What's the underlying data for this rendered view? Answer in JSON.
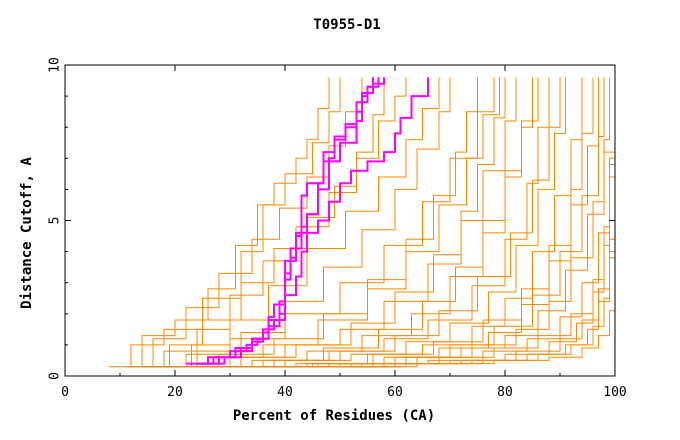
{
  "chart_data": {
    "type": "line",
    "title": "T0955-D1",
    "xlabel": "Percent of Residues (CA)",
    "ylabel": "Distance Cutoff, A",
    "xlim": [
      0,
      100
    ],
    "ylim": [
      0,
      10
    ],
    "x_ticks": [
      0,
      20,
      40,
      60,
      80,
      100
    ],
    "y_ticks": [
      0,
      5,
      10
    ],
    "grid": false,
    "colors": {
      "background_models": "#ff8800",
      "highlight_models": "#ff00ff"
    },
    "series": [
      {
        "name": "highlight-1",
        "group": "highlight",
        "x": [
          22,
          26,
          30,
          33,
          35,
          37,
          38,
          40,
          40,
          42,
          43,
          43,
          44,
          47,
          50,
          53,
          54,
          56,
          58
        ],
        "y": [
          0.4,
          0.6,
          0.8,
          1.0,
          1.2,
          1.5,
          1.8,
          2.6,
          3.7,
          4.5,
          5.1,
          5.8,
          6.2,
          6.9,
          7.5,
          8.2,
          9.1,
          9.4,
          9.6
        ]
      },
      {
        "name": "highlight-2",
        "group": "highlight",
        "x": [
          24,
          28,
          31,
          34,
          36,
          37,
          38,
          40,
          41,
          42,
          44,
          46,
          48,
          49,
          51,
          53,
          55,
          57
        ],
        "y": [
          0.4,
          0.6,
          0.9,
          1.2,
          1.5,
          1.9,
          2.3,
          3.1,
          3.8,
          4.6,
          5.2,
          6.0,
          7.0,
          7.6,
          8.1,
          8.8,
          9.3,
          9.6
        ]
      },
      {
        "name": "highlight-3",
        "group": "highlight",
        "x": [
          24,
          27,
          31,
          34,
          36,
          37,
          39,
          40,
          41,
          43,
          44,
          46,
          47,
          49,
          51,
          53,
          54,
          55,
          56
        ],
        "y": [
          0.4,
          0.6,
          0.8,
          1.1,
          1.4,
          1.8,
          2.4,
          3.3,
          4.1,
          4.8,
          5.2,
          6.2,
          7.2,
          7.7,
          8.0,
          8.5,
          9.0,
          9.3,
          9.6
        ]
      },
      {
        "name": "highlight-4",
        "group": "highlight",
        "x": [
          25,
          29,
          32,
          34,
          37,
          39,
          40,
          42,
          43,
          44,
          46,
          48,
          50,
          52,
          55,
          58,
          60,
          61,
          63,
          66
        ],
        "y": [
          0.4,
          0.6,
          0.9,
          1.2,
          1.6,
          2.0,
          2.6,
          3.2,
          4.0,
          4.6,
          5.0,
          5.6,
          6.2,
          6.6,
          6.9,
          7.2,
          7.8,
          8.3,
          9.0,
          9.6
        ]
      },
      {
        "name": "m01",
        "group": "model",
        "x": [
          8,
          12,
          18,
          25,
          32,
          36,
          40,
          45,
          48,
          50
        ],
        "y": [
          0.3,
          1.0,
          1.5,
          2.5,
          4.0,
          5.5,
          6.5,
          7.5,
          8.5,
          9.6
        ]
      },
      {
        "name": "m02",
        "group": "model",
        "x": [
          11,
          14,
          20,
          26,
          31,
          35,
          38,
          42,
          44,
          46,
          48
        ],
        "y": [
          0.3,
          1.3,
          1.8,
          2.8,
          4.2,
          5.5,
          6.2,
          7.0,
          7.6,
          8.6,
          9.6
        ]
      },
      {
        "name": "m03",
        "group": "model",
        "x": [
          13,
          18,
          24,
          30,
          36,
          42,
          48,
          53,
          57,
          60,
          62
        ],
        "y": [
          0.3,
          0.8,
          1.5,
          2.6,
          3.7,
          4.8,
          5.9,
          7.0,
          8.2,
          9.0,
          9.6
        ]
      },
      {
        "name": "m04",
        "group": "model",
        "x": [
          15,
          22,
          30,
          40,
          50,
          58,
          65,
          70,
          75,
          78
        ],
        "y": [
          0.3,
          0.7,
          1.2,
          2.0,
          3.0,
          4.2,
          5.6,
          7.0,
          8.5,
          9.6
        ]
      },
      {
        "name": "m05",
        "group": "model",
        "x": [
          18,
          26,
          36,
          46,
          55,
          62,
          68,
          73,
          76,
          79
        ],
        "y": [
          0.3,
          0.6,
          1.0,
          1.8,
          2.8,
          4.0,
          5.5,
          7.0,
          8.4,
          9.6
        ]
      },
      {
        "name": "m06",
        "group": "model",
        "x": [
          20,
          30,
          40,
          50,
          58,
          66,
          72,
          76,
          80,
          82
        ],
        "y": [
          0.3,
          0.6,
          1.0,
          1.5,
          2.4,
          3.6,
          5.0,
          6.6,
          8.2,
          9.6
        ]
      },
      {
        "name": "m07",
        "group": "model",
        "x": [
          22,
          34,
          44,
          54,
          63,
          70,
          76,
          80,
          83,
          85
        ],
        "y": [
          0.3,
          0.5,
          0.8,
          1.3,
          2.0,
          3.2,
          4.6,
          6.4,
          8.0,
          9.6
        ]
      },
      {
        "name": "m08",
        "group": "model",
        "x": [
          24,
          36,
          48,
          58,
          66,
          74,
          80,
          84,
          86,
          88
        ],
        "y": [
          0.3,
          0.5,
          0.8,
          1.2,
          1.8,
          2.9,
          4.4,
          6.2,
          8.0,
          9.6
        ]
      },
      {
        "name": "m09",
        "group": "model",
        "x": [
          26,
          40,
          52,
          62,
          70,
          77,
          82,
          86,
          89,
          91
        ],
        "y": [
          0.3,
          0.5,
          0.7,
          1.1,
          1.7,
          2.7,
          4.2,
          6.0,
          7.8,
          9.6
        ]
      },
      {
        "name": "m10",
        "group": "model",
        "x": [
          28,
          42,
          55,
          65,
          74,
          80,
          85,
          89,
          92,
          94
        ],
        "y": [
          0.3,
          0.4,
          0.7,
          1.0,
          1.6,
          2.5,
          4.0,
          5.8,
          7.6,
          9.6
        ]
      },
      {
        "name": "m11",
        "group": "model",
        "x": [
          30,
          45,
          58,
          68,
          77,
          83,
          88,
          92,
          95,
          97
        ],
        "y": [
          0.3,
          0.4,
          0.6,
          0.9,
          1.4,
          2.3,
          3.7,
          5.5,
          7.4,
          9.6
        ]
      },
      {
        "name": "m12",
        "group": "model",
        "x": [
          32,
          48,
          62,
          72,
          80,
          86,
          91,
          95,
          98,
          100
        ],
        "y": [
          0.3,
          0.4,
          0.6,
          0.9,
          1.3,
          2.1,
          3.4,
          5.2,
          7.2,
          9.6
        ]
      },
      {
        "name": "m13",
        "group": "model",
        "x": [
          35,
          52,
          66,
          76,
          84,
          90,
          94,
          97,
          99,
          100
        ],
        "y": [
          0.3,
          0.4,
          0.5,
          0.8,
          1.2,
          1.9,
          3.0,
          4.6,
          6.8,
          9.6
        ]
      },
      {
        "name": "m14",
        "group": "model",
        "x": [
          38,
          56,
          70,
          80,
          88,
          93,
          96,
          98,
          99,
          100
        ],
        "y": [
          0.3,
          0.4,
          0.5,
          0.7,
          1.1,
          1.7,
          2.7,
          4.2,
          6.4,
          9.6
        ]
      },
      {
        "name": "m15",
        "group": "model",
        "x": [
          42,
          60,
          74,
          84,
          91,
          95,
          97,
          99,
          100,
          100
        ],
        "y": [
          0.3,
          0.4,
          0.5,
          0.7,
          1.0,
          1.5,
          2.4,
          3.8,
          6.0,
          9.6
        ]
      },
      {
        "name": "m16",
        "group": "model",
        "x": [
          46,
          64,
          78,
          88,
          94,
          97,
          99,
          100,
          100,
          100
        ],
        "y": [
          0.3,
          0.4,
          0.5,
          0.6,
          0.9,
          1.3,
          2.1,
          3.4,
          5.6,
          9.6
        ]
      },
      {
        "name": "m17",
        "group": "model",
        "x": [
          14,
          19,
          25,
          32,
          38,
          44,
          49,
          53,
          56,
          58
        ],
        "y": [
          0.3,
          1.0,
          1.8,
          3.0,
          4.1,
          5.1,
          6.1,
          7.2,
          8.4,
          9.6
        ]
      },
      {
        "name": "m18",
        "group": "model",
        "x": [
          16,
          24,
          32,
          40,
          47,
          54,
          60,
          64,
          68,
          70
        ],
        "y": [
          0.3,
          0.8,
          1.4,
          2.4,
          3.5,
          4.7,
          6.0,
          7.3,
          8.5,
          9.6
        ]
      },
      {
        "name": "m19",
        "group": "model",
        "x": [
          19,
          28,
          38,
          47,
          55,
          62,
          67,
          71,
          73,
          75
        ],
        "y": [
          0.3,
          0.7,
          1.2,
          2.0,
          3.1,
          4.4,
          5.8,
          7.2,
          8.5,
          9.6
        ]
      },
      {
        "name": "m20",
        "group": "model",
        "x": [
          21,
          32,
          42,
          52,
          60,
          67,
          72,
          75,
          78,
          80
        ],
        "y": [
          0.3,
          0.6,
          1.0,
          1.7,
          2.7,
          3.9,
          5.3,
          6.8,
          8.3,
          9.6
        ]
      },
      {
        "name": "m21",
        "group": "model",
        "x": [
          23,
          36,
          47,
          57,
          65,
          71,
          76,
          80,
          83,
          86
        ],
        "y": [
          0.3,
          0.5,
          0.9,
          1.5,
          2.4,
          3.5,
          5.0,
          6.6,
          8.2,
          9.6
        ]
      },
      {
        "name": "m22",
        "group": "model",
        "x": [
          27,
          38,
          50,
          60,
          68,
          75,
          81,
          85,
          88,
          90
        ],
        "y": [
          0.3,
          0.5,
          0.8,
          1.3,
          2.1,
          3.2,
          4.6,
          6.3,
          8.0,
          9.6
        ]
      },
      {
        "name": "m23",
        "group": "model",
        "x": [
          29,
          44,
          56,
          67,
          76,
          83,
          88,
          92,
          94,
          96
        ],
        "y": [
          0.3,
          0.4,
          0.7,
          1.1,
          1.8,
          2.8,
          4.2,
          6.0,
          7.8,
          9.6
        ]
      },
      {
        "name": "m24",
        "group": "model",
        "x": [
          33,
          50,
          64,
          74,
          82,
          88,
          92,
          96,
          98,
          99
        ],
        "y": [
          0.3,
          0.4,
          0.6,
          1.0,
          1.5,
          2.4,
          3.8,
          5.6,
          7.6,
          9.6
        ]
      },
      {
        "name": "m25",
        "group": "model",
        "x": [
          12,
          16,
          22,
          28,
          34,
          39,
          44,
          48,
          51,
          54
        ],
        "y": [
          0.3,
          1.2,
          2.2,
          3.3,
          4.4,
          5.4,
          6.4,
          7.4,
          8.5,
          9.6
        ]
      },
      {
        "name": "m26",
        "group": "model",
        "x": [
          17,
          23,
          30,
          37,
          44,
          51,
          57,
          62,
          65,
          68
        ],
        "y": [
          0.3,
          1.0,
          1.8,
          2.9,
          4.1,
          5.3,
          6.4,
          7.6,
          8.6,
          9.6
        ]
      },
      {
        "name": "m27",
        "group": "model",
        "x": [
          36,
          54,
          68,
          78,
          86,
          92,
          96,
          98,
          99,
          100
        ],
        "y": [
          0.3,
          0.4,
          0.6,
          0.9,
          1.3,
          2.0,
          3.1,
          4.8,
          7.0,
          9.6
        ]
      },
      {
        "name": "m28",
        "group": "model",
        "x": [
          40,
          58,
          72,
          82,
          90,
          94,
          97,
          99,
          100,
          100
        ],
        "y": [
          0.3,
          0.4,
          0.5,
          0.8,
          1.2,
          1.8,
          2.8,
          4.4,
          6.6,
          9.6
        ]
      },
      {
        "name": "m29",
        "group": "model",
        "x": [
          31,
          46,
          60,
          70,
          78,
          85,
          90,
          94,
          97,
          98
        ],
        "y": [
          0.3,
          0.4,
          0.6,
          1.0,
          1.6,
          2.6,
          4.0,
          5.8,
          7.7,
          9.6
        ]
      },
      {
        "name": "m30",
        "group": "model",
        "x": [
          44,
          62,
          76,
          86,
          92,
          96,
          98,
          99,
          100,
          100
        ],
        "y": [
          0.3,
          0.4,
          0.5,
          0.7,
          1.0,
          1.6,
          2.5,
          4.0,
          6.2,
          9.6
        ]
      }
    ]
  }
}
